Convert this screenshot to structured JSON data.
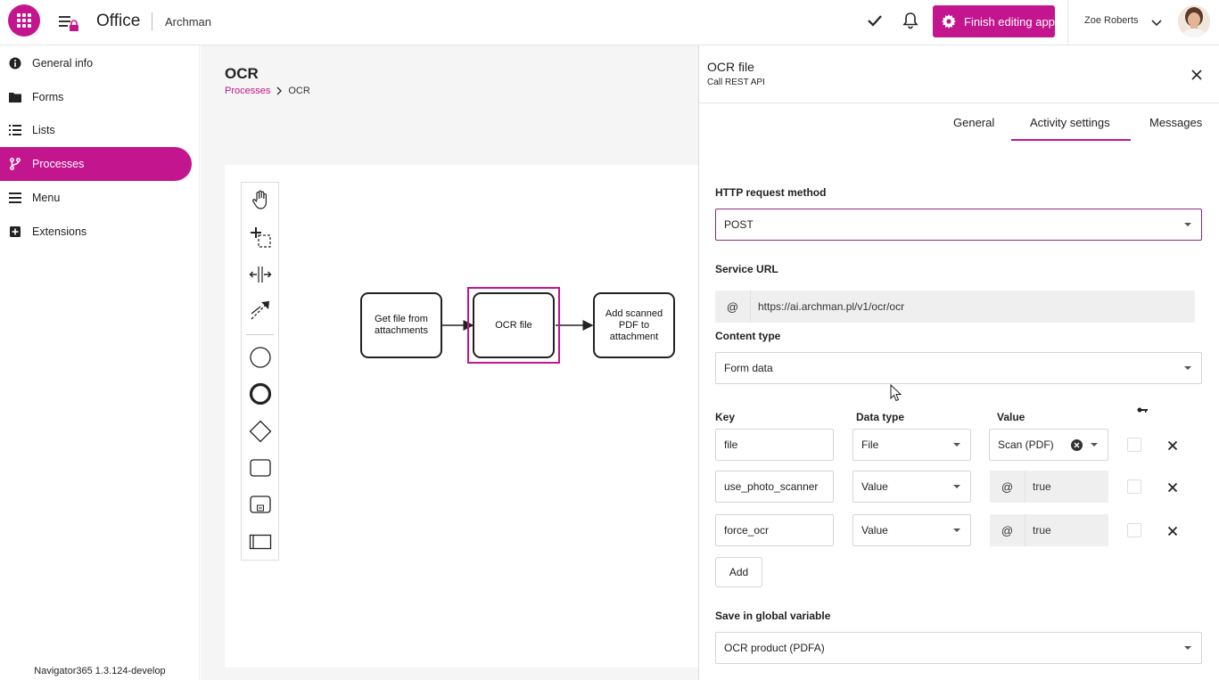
{
  "header": {
    "app_title": "Office",
    "subtitle": "Archman",
    "finish_label": "Finish editing app",
    "user_name": "Zoe Roberts"
  },
  "sidebar": {
    "items": [
      {
        "label": "General info",
        "icon": "info-icon"
      },
      {
        "label": "Forms",
        "icon": "folder-icon"
      },
      {
        "label": "Lists",
        "icon": "list-icon"
      },
      {
        "label": "Processes",
        "icon": "process-icon",
        "active": true
      },
      {
        "label": "Menu",
        "icon": "menu-icon"
      },
      {
        "label": "Extensions",
        "icon": "plus-square-icon"
      }
    ],
    "version": "Navigator365 1.3.124-develop"
  },
  "main": {
    "title": "OCR",
    "breadcrumb": {
      "parent": "Processes",
      "current": "OCR"
    },
    "diagram": {
      "tasks": [
        {
          "label": "Get file from attachments"
        },
        {
          "label": "OCR file",
          "selected": true
        },
        {
          "label": "Add scanned PDF to attachment"
        }
      ]
    }
  },
  "panel": {
    "title": "OCR file",
    "subtitle": "Call REST API",
    "tabs": [
      {
        "label": "General"
      },
      {
        "label": "Activity settings",
        "active": true
      },
      {
        "label": "Messages"
      }
    ],
    "http_method": {
      "label": "HTTP request method",
      "value": "POST"
    },
    "service_url": {
      "label": "Service URL",
      "prefix": "@",
      "value": "https://ai.archman.pl/v1/ocr/ocr"
    },
    "content_type": {
      "label": "Content type",
      "value": "Form data"
    },
    "params": {
      "headers": {
        "key": "Key",
        "data_type": "Data type",
        "value": "Value"
      },
      "rows": [
        {
          "key": "file",
          "data_type": "File",
          "value": "Scan (PDF)",
          "value_kind": "select"
        },
        {
          "key": "use_photo_scanner",
          "data_type": "Value",
          "value": "true",
          "value_kind": "expression",
          "prefix": "@"
        },
        {
          "key": "force_ocr",
          "data_type": "Value",
          "value": "true",
          "value_kind": "expression",
          "prefix": "@"
        }
      ],
      "add_label": "Add"
    },
    "global_variable": {
      "label": "Save in global variable",
      "value": "OCR product (PDFA)"
    }
  },
  "colors": {
    "accent": "#c2158e"
  }
}
